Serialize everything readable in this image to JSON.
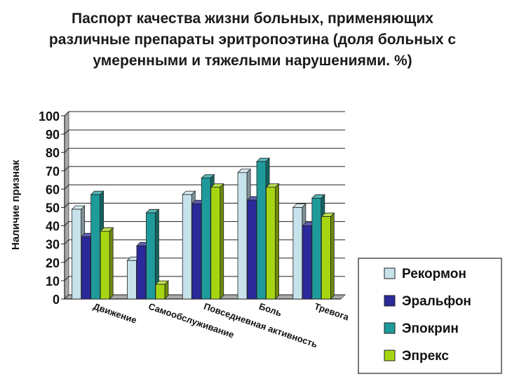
{
  "title_lines": [
    "Паспорт качества жизни больных, применяющих",
    "различные препараты эритропоэтина (доля больных с",
    "умеренными и тяжелыми нарушениями. %)"
  ],
  "chart_data": {
    "type": "bar",
    "style": "3d-clustered-columns",
    "ylabel": "Наличие признак",
    "ylim": [
      0,
      100
    ],
    "yticks": [
      0,
      10,
      20,
      30,
      40,
      50,
      60,
      70,
      80,
      90,
      100
    ],
    "categories": [
      "Движение",
      "Самообслуживание",
      "Повседневная активность",
      "Боль",
      "Тревога"
    ],
    "series": [
      {
        "name": "Рекормон",
        "color": "#c6e2ea",
        "values": [
          49,
          21,
          57,
          69,
          50
        ]
      },
      {
        "name": "Эральфон",
        "color": "#2a2a9a",
        "values": [
          34,
          29,
          52,
          54,
          40
        ]
      },
      {
        "name": "Эпокрин",
        "color": "#1f9a9a",
        "values": [
          57,
          47,
          66,
          75,
          55
        ]
      },
      {
        "name": "Эпрекс",
        "color": "#a6d612",
        "values": [
          37,
          8,
          61,
          61,
          45
        ]
      }
    ],
    "legend_position": "bottom-right"
  }
}
